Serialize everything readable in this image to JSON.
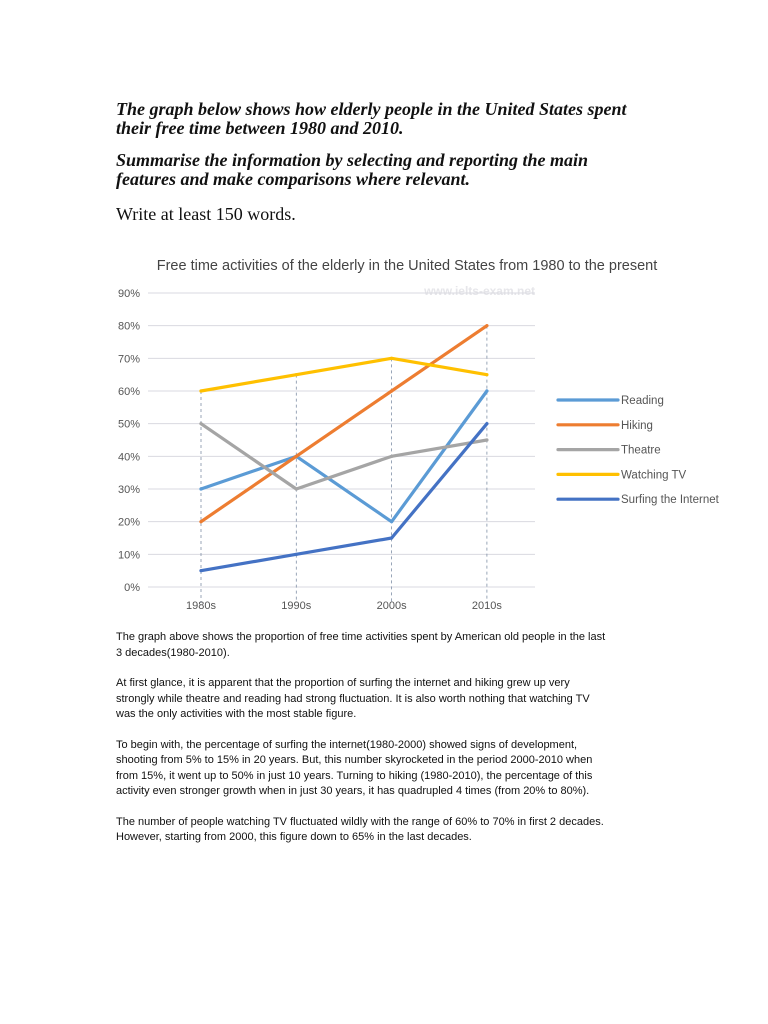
{
  "task": {
    "prompt_1": "The graph below shows how elderly people in the United States spent\ntheir free time between 1980 and 2010.",
    "prompt_2": "Summarise the information by selecting and reporting the main\nfeatures and make comparisons where relevant.",
    "instruction": "Write at least 150 words."
  },
  "chart_data": {
    "type": "line",
    "title": "Free time activities of the elderly in the United States from 1980 to the present",
    "watermark": "www.ielts-exam.net",
    "categories": [
      "1980s",
      "1990s",
      "2000s",
      "2010s"
    ],
    "y_ticks": [
      "0%",
      "10%",
      "20%",
      "30%",
      "40%",
      "50%",
      "60%",
      "70%",
      "80%",
      "90%"
    ],
    "ylim": [
      0,
      90
    ],
    "grid": true,
    "legend": "right",
    "series": [
      {
        "name": "Reading",
        "values": [
          30,
          40,
          20,
          60
        ],
        "color": "#5B9BD5"
      },
      {
        "name": "Hiking",
        "values": [
          20,
          40,
          60,
          80
        ],
        "color": "#ED7D31"
      },
      {
        "name": "Theatre",
        "values": [
          50,
          30,
          40,
          45
        ],
        "color": "#A5A5A5"
      },
      {
        "name": "Watching TV",
        "values": [
          60,
          65,
          70,
          65
        ],
        "color": "#FFC000"
      },
      {
        "name": "Surfing the Internet",
        "values": [
          5,
          10,
          15,
          50
        ],
        "color": "#4472C4"
      }
    ]
  },
  "essay": {
    "paragraphs": [
      "The graph above shows the proportion of free time activities spent by American old people in the last\n3 decades(1980-2010).",
      "At first glance, it is apparent that the proportion of surfing the internet and hiking grew up very\nstrongly while theatre and reading had strong fluctuation. It is also worth nothing that watching TV\nwas the only activities with the most stable figure.",
      "To begin with, the percentage of surfing the internet(1980-2000) showed signs of development,\nshooting from 5% to 15% in 20 years. But, this number skyrocketed in the period 2000-2010 when\nfrom 15%, it went up to 50% in just 10 years. Turning to hiking (1980-2010), the percentage of this\nactivity even stronger growth when in just 30 years, it has quadrupled 4 times (from 20% to 80%).",
      "The number of people watching TV fluctuated wildly with the range of 60% to 70% in first 2 decades.\nHowever, starting from 2000, this figure down to 65% in the last decades."
    ]
  }
}
